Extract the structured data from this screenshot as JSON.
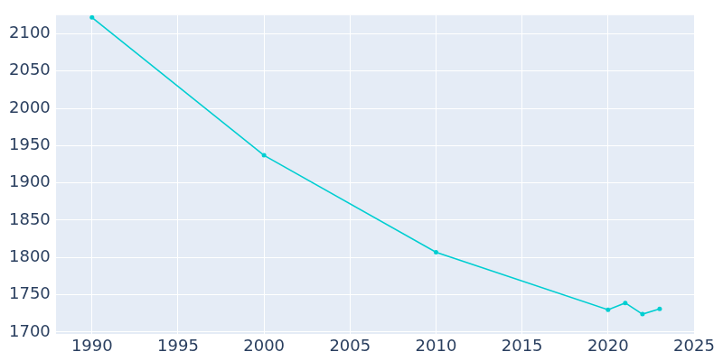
{
  "chart_data": {
    "type": "line",
    "x": [
      1990,
      2000,
      2010,
      2020,
      2021,
      2022,
      2023
    ],
    "values": [
      2122,
      1937,
      1807,
      1730,
      1739,
      1724,
      1731
    ],
    "color": "#00ced1",
    "marker": "circle",
    "xlim": [
      1987.9,
      2025
    ],
    "xticks": [
      1990,
      1995,
      2000,
      2005,
      2010,
      2015,
      2020,
      2025
    ],
    "ylim": [
      1697,
      2125
    ],
    "yticks": [
      1700,
      1750,
      1800,
      1850,
      1900,
      1950,
      2000,
      2050,
      2100
    ],
    "grid": true
  }
}
